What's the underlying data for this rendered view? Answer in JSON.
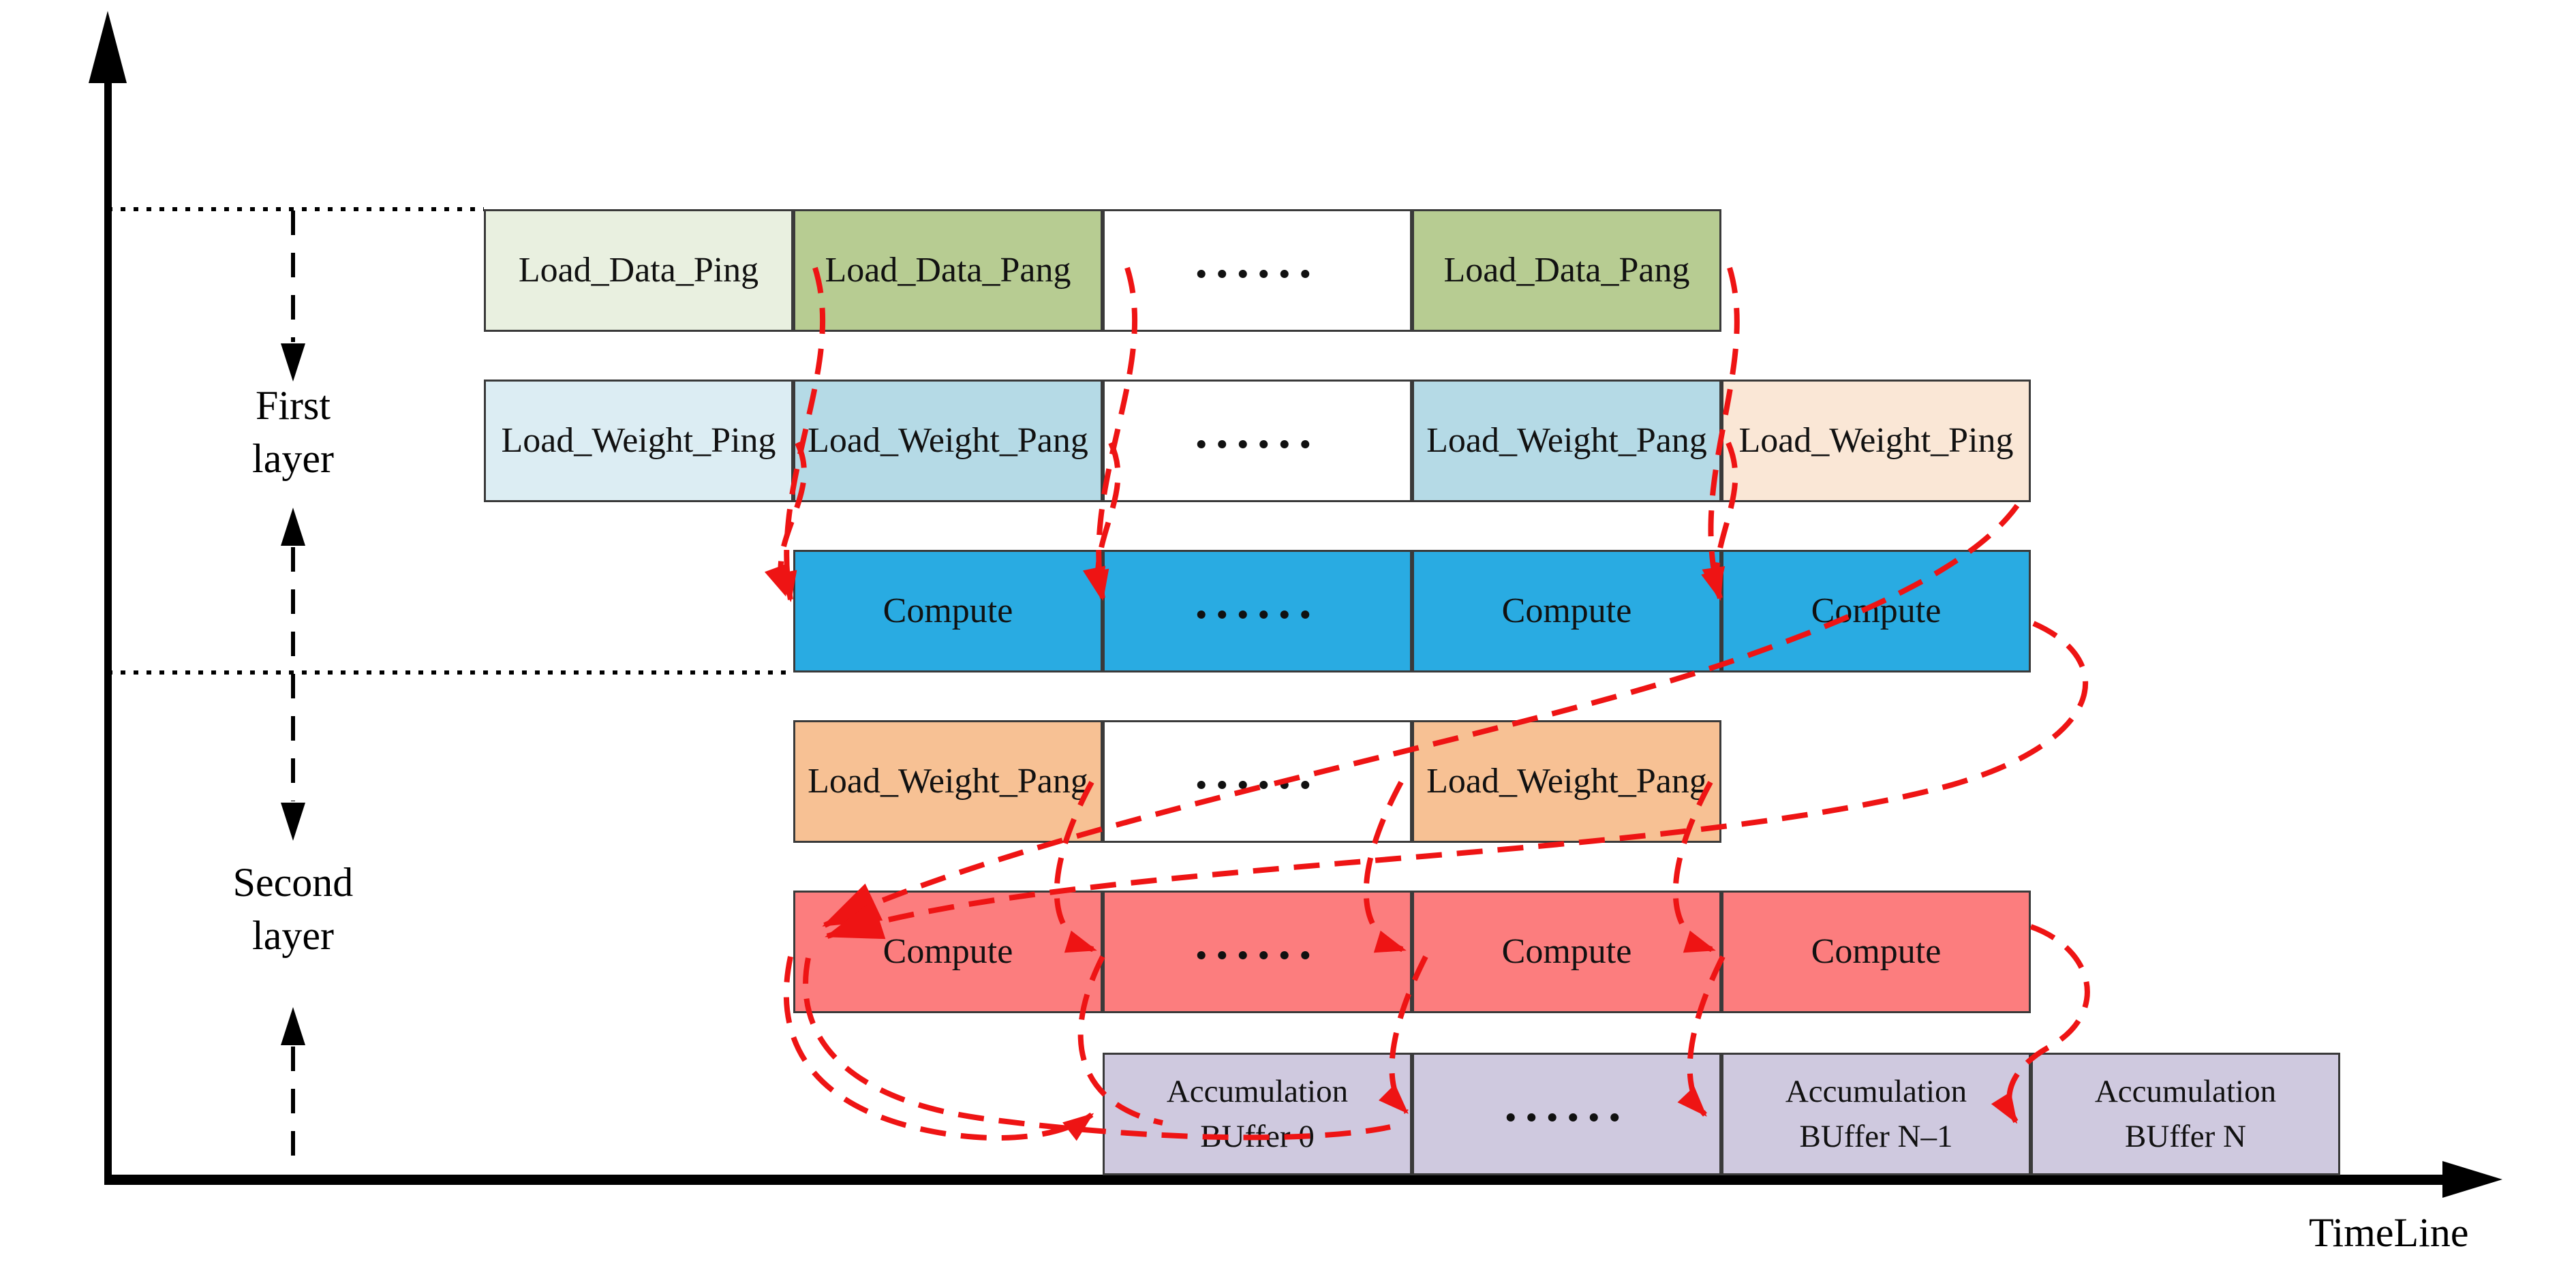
{
  "axis": {
    "x_label": "TimeLine"
  },
  "layer_markers": [
    {
      "line1": "First",
      "line2": "layer"
    },
    {
      "line1": "Second",
      "line2": "layer"
    }
  ],
  "colors": {
    "load_data_ping": "#e9f0e0",
    "load_data_pang": "#b7cc92",
    "load_weight_ping": "#dcedf3",
    "load_weight_pang": "#b5dae6",
    "load_weight_ping_preload": "#fae7d6",
    "compute_layer1": "#29abe2",
    "load_weight_pang_layer2": "#f7c194",
    "compute_layer2": "#fc7d7e",
    "accumulation_buffer": "#cfc9df",
    "ellipsis_box": "#ffffff",
    "dependency_arrow": "#ee1414",
    "axis_and_marker": "#000000"
  },
  "rows": [
    {
      "name": "layer1-load-data",
      "row": 0,
      "boxes": [
        {
          "name": "load-data-ping",
          "label": "Load_Data_Ping",
          "col": 0,
          "color_key": "load_data_ping"
        },
        {
          "name": "load-data-pang-1",
          "label": "Load_Data_Pang",
          "col": 1,
          "color_key": "load_data_pang"
        },
        {
          "name": "load-data-ellipsis",
          "label": "......",
          "dots": true,
          "col": 2,
          "color_key": "ellipsis_box"
        },
        {
          "name": "load-data-pang-n",
          "label": "Load_Data_Pang",
          "col": 3,
          "color_key": "load_data_pang"
        }
      ]
    },
    {
      "name": "layer1-load-weight",
      "row": 1,
      "boxes": [
        {
          "name": "load-weight-ping-1",
          "label": "Load_Weight_Ping",
          "col": 0,
          "color_key": "load_weight_ping"
        },
        {
          "name": "load-weight-pang-1",
          "label": "Load_Weight_Pang",
          "col": 1,
          "color_key": "load_weight_pang"
        },
        {
          "name": "load-weight-ellipsis",
          "label": "......",
          "dots": true,
          "col": 2,
          "color_key": "ellipsis_box"
        },
        {
          "name": "load-weight-pang-n",
          "label": "Load_Weight_Pang",
          "col": 3,
          "color_key": "load_weight_pang"
        },
        {
          "name": "load-weight-ping-next",
          "label": "Load_Weight_Ping",
          "col": 4,
          "color_key": "load_weight_ping_preload"
        }
      ]
    },
    {
      "name": "layer1-compute",
      "row": 2,
      "boxes": [
        {
          "name": "compute-l1-1",
          "label": "Compute",
          "col": 1,
          "color_key": "compute_layer1"
        },
        {
          "name": "compute-l1-ellipsis",
          "label": "......",
          "dots": true,
          "col": 2,
          "color_key": "compute_layer1"
        },
        {
          "name": "compute-l1-n1",
          "label": "Compute",
          "col": 3,
          "color_key": "compute_layer1"
        },
        {
          "name": "compute-l1-n",
          "label": "Compute",
          "col": 4,
          "color_key": "compute_layer1"
        }
      ]
    },
    {
      "name": "layer2-load-weight",
      "row": 3,
      "boxes": [
        {
          "name": "l2-load-weight-pang-1",
          "label": "Load_Weight_Pang",
          "col": 1,
          "color_key": "load_weight_pang_layer2"
        },
        {
          "name": "l2-load-weight-ellipsis",
          "label": "......",
          "dots": true,
          "col": 2,
          "color_key": "ellipsis_box"
        },
        {
          "name": "l2-load-weight-pang-n",
          "label": "Load_Weight_Pang",
          "col": 3,
          "color_key": "load_weight_pang_layer2"
        }
      ]
    },
    {
      "name": "layer2-compute",
      "row": 4,
      "boxes": [
        {
          "name": "compute-l2-1",
          "label": "Compute",
          "col": 1,
          "color_key": "compute_layer2"
        },
        {
          "name": "compute-l2-ellipsis",
          "label": "......",
          "dots": true,
          "col": 2,
          "color_key": "compute_layer2"
        },
        {
          "name": "compute-l2-n1",
          "label": "Compute",
          "col": 3,
          "color_key": "compute_layer2"
        },
        {
          "name": "compute-l2-n",
          "label": "Compute",
          "col": 4,
          "color_key": "compute_layer2"
        }
      ]
    },
    {
      "name": "accumulation",
      "row": 5,
      "boxes": [
        {
          "name": "accumulation-buffer-0",
          "label": "Accumulation",
          "label2": "BUffer 0",
          "col": 2,
          "color_key": "accumulation_buffer"
        },
        {
          "name": "accumulation-ellipsis",
          "label": "......",
          "dots": true,
          "col": 3,
          "color_key": "accumulation_buffer"
        },
        {
          "name": "accumulation-buffer-n-minus-1",
          "label": "Accumulation",
          "label2": "BUffer N–1",
          "col": 4,
          "color_key": "accumulation_buffer"
        },
        {
          "name": "accumulation-buffer-n",
          "label": "Accumulation",
          "label2": "BUffer N",
          "col": 5,
          "color_key": "accumulation_buffer"
        }
      ]
    }
  ]
}
